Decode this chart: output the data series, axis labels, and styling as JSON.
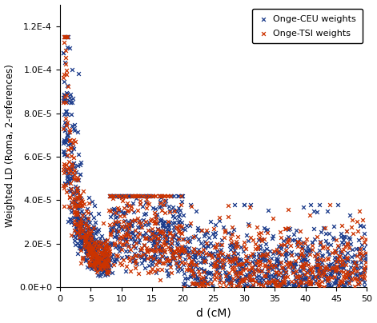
{
  "title": "",
  "xlabel": "d (cM)",
  "ylabel": "Weighted LD (Roma, 2-references)",
  "xlim": [
    0,
    50
  ],
  "ylim": [
    0,
    0.00013
  ],
  "yticks": [
    0,
    2e-05,
    4e-05,
    6e-05,
    8e-05,
    0.0001,
    0.00012
  ],
  "ytick_labels": [
    "0.0E+0",
    "2.0E-5",
    "4.0E-5",
    "6.0E-5",
    "8.0E-5",
    "1.0E-4",
    "1.2E-4"
  ],
  "xticks": [
    0,
    5,
    10,
    15,
    20,
    25,
    30,
    35,
    40,
    45,
    50
  ],
  "series1_label": "Onge-CEU weights",
  "series2_label": "Onge-TSI weights",
  "color1": "#1a3a8a",
  "color2": "#cc3300",
  "seed": 42
}
